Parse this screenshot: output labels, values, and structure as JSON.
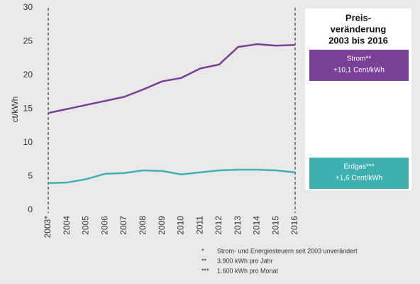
{
  "chart_data": {
    "type": "line",
    "ylabel": "ct/kWh",
    "categories": [
      "2003*",
      "2004",
      "2005",
      "2006",
      "2007",
      "2008",
      "2009",
      "2010",
      "2011",
      "2012",
      "2013",
      "2014",
      "2015",
      "2016"
    ],
    "series": [
      {
        "name": "Strom",
        "color": "#7a3f96",
        "values": [
          14.4,
          15.0,
          15.6,
          16.2,
          16.8,
          17.9,
          19.1,
          19.6,
          21.0,
          21.6,
          24.2,
          24.6,
          24.4,
          24.5
        ]
      },
      {
        "name": "Erdgas",
        "color": "#3fb0b0",
        "values": [
          4.0,
          4.1,
          4.6,
          5.4,
          5.5,
          5.9,
          5.8,
          5.3,
          5.6,
          5.9,
          6.0,
          6.0,
          5.9,
          5.6
        ]
      }
    ],
    "ylim": [
      0,
      30
    ],
    "yticks": [
      0,
      5,
      10,
      15,
      20,
      25,
      30
    ],
    "grid": false,
    "panel": {
      "title_lines": [
        "Preis-",
        "veränderung",
        "2003 bis 2016"
      ],
      "boxes": [
        {
          "label": "Strom**",
          "change": "+10,1 Cent/kWh",
          "color": "#7a3f96"
        },
        {
          "label": "Erdgas***",
          "change": "+1,6 Cent/kWh",
          "color": "#3fb0b0"
        }
      ]
    },
    "footnotes": [
      {
        "mark": "*",
        "text": "Strom- und Energiesteuern seit 2003 unverändert"
      },
      {
        "mark": "**",
        "text": "3.900 kWh pro Jahr"
      },
      {
        "mark": "***",
        "text": "1.600 kWh pro Monat"
      }
    ]
  }
}
